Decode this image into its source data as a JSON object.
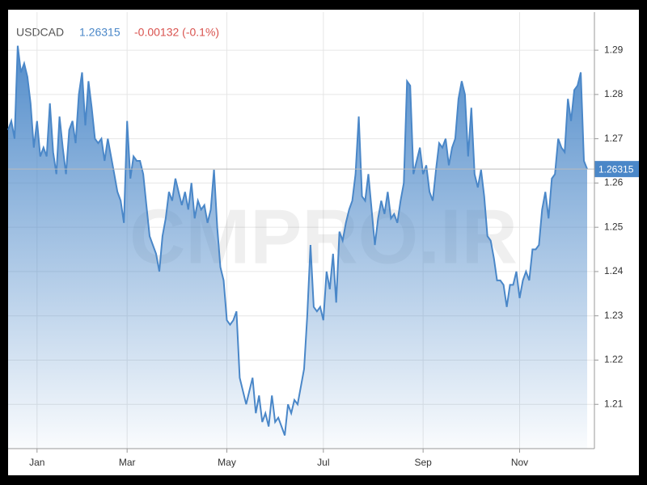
{
  "chart_data": {
    "type": "area",
    "symbol": "USDCAD",
    "price": "1.26315",
    "change": "-0.00132 (-0.1%)",
    "watermark": "CMPRO.IR",
    "series": [
      {
        "name": "USDCAD",
        "color": "#4a87c8",
        "values": [
          1.272,
          1.274,
          1.27,
          1.291,
          1.285,
          1.287,
          1.284,
          1.278,
          1.268,
          1.274,
          1.266,
          1.268,
          1.266,
          1.278,
          1.267,
          1.262,
          1.275,
          1.268,
          1.262,
          1.272,
          1.274,
          1.269,
          1.28,
          1.285,
          1.273,
          1.283,
          1.277,
          1.27,
          1.269,
          1.27,
          1.265,
          1.27,
          1.266,
          1.262,
          1.258,
          1.256,
          1.251,
          1.274,
          1.261,
          1.266,
          1.265,
          1.265,
          1.262,
          1.255,
          1.248,
          1.246,
          1.244,
          1.24,
          1.248,
          1.252,
          1.258,
          1.256,
          1.261,
          1.258,
          1.255,
          1.258,
          1.254,
          1.26,
          1.252,
          1.256,
          1.254,
          1.255,
          1.251,
          1.254,
          1.263,
          1.25,
          1.241,
          1.238,
          1.229,
          1.228,
          1.229,
          1.231,
          1.216,
          1.213,
          1.21,
          1.213,
          1.216,
          1.208,
          1.212,
          1.206,
          1.208,
          1.205,
          1.212,
          1.206,
          1.207,
          1.205,
          1.203,
          1.21,
          1.208,
          1.211,
          1.21,
          1.214,
          1.218,
          1.23,
          1.246,
          1.232,
          1.231,
          1.232,
          1.229,
          1.24,
          1.236,
          1.244,
          1.233,
          1.249,
          1.247,
          1.251,
          1.254,
          1.256,
          1.262,
          1.275,
          1.257,
          1.256,
          1.262,
          1.254,
          1.246,
          1.252,
          1.256,
          1.253,
          1.258,
          1.252,
          1.253,
          1.251,
          1.256,
          1.26,
          1.283,
          1.282,
          1.262,
          1.265,
          1.268,
          1.262,
          1.264,
          1.258,
          1.256,
          1.263,
          1.269,
          1.268,
          1.27,
          1.264,
          1.268,
          1.27,
          1.279,
          1.283,
          1.28,
          1.266,
          1.277,
          1.262,
          1.259,
          1.263,
          1.257,
          1.248,
          1.247,
          1.243,
          1.238,
          1.238,
          1.237,
          1.232,
          1.237,
          1.237,
          1.24,
          1.234,
          1.238,
          1.24,
          1.238,
          1.245,
          1.245,
          1.246,
          1.254,
          1.258,
          1.252,
          1.261,
          1.262,
          1.27,
          1.268,
          1.267,
          1.279,
          1.274,
          1.281,
          1.282,
          1.285,
          1.265,
          1.26315
        ]
      }
    ],
    "xlim": [
      0,
      181
    ],
    "xticks": [
      {
        "value": 9,
        "label": "Jan"
      },
      {
        "value": 37,
        "label": "Mar"
      },
      {
        "value": 68,
        "label": "May"
      },
      {
        "value": 98,
        "label": "Jul"
      },
      {
        "value": 129,
        "label": "Sep"
      },
      {
        "value": 159,
        "label": "Nov"
      }
    ],
    "ylim": [
      1.2,
      1.2986
    ],
    "yticks": [
      1.21,
      1.22,
      1.23,
      1.24,
      1.25,
      1.26,
      1.27,
      1.28,
      1.29
    ],
    "grid": true
  }
}
